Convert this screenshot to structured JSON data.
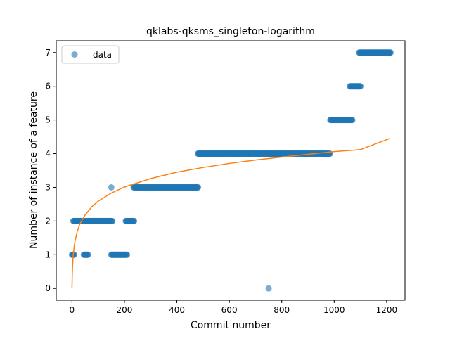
{
  "chart_data": {
    "type": "scatter",
    "title": "qklabs-qksms_singleton-logarithm",
    "xlabel": "Commit number",
    "ylabel": "Number of instance of a feature",
    "xlim": [
      -60,
      1270
    ],
    "ylim": [
      -0.35,
      7.35
    ],
    "x_ticks": [
      0,
      200,
      400,
      600,
      800,
      1000,
      1200
    ],
    "y_ticks": [
      0,
      1,
      2,
      3,
      4,
      5,
      6,
      7
    ],
    "grid": false,
    "legend_position": "upper-left",
    "series": [
      {
        "name": "data",
        "kind": "scatter",
        "color": "#1f77b4",
        "runs": [
          {
            "x0": 0,
            "x1": 8,
            "y": 1
          },
          {
            "x0": 5,
            "x1": 55,
            "y": 2
          },
          {
            "x0": 45,
            "x1": 62,
            "y": 1
          },
          {
            "x0": 60,
            "x1": 155,
            "y": 2
          },
          {
            "x0": 150,
            "x1": 210,
            "y": 1
          },
          {
            "x0": 205,
            "x1": 238,
            "y": 2
          },
          {
            "x0": 235,
            "x1": 482,
            "y": 3
          },
          {
            "x0": 480,
            "x1": 985,
            "y": 4
          },
          {
            "x0": 985,
            "x1": 1070,
            "y": 5
          },
          {
            "x0": 1060,
            "x1": 1100,
            "y": 6
          },
          {
            "x0": 1095,
            "x1": 1215,
            "y": 7
          }
        ],
        "points": [
          {
            "x": 150,
            "y": 3
          },
          {
            "x": 750,
            "y": 0
          }
        ]
      },
      {
        "name": "",
        "kind": "line",
        "color": "#ff7f0e",
        "model": "logarithmic",
        "x": [
          0,
          1,
          2,
          5,
          10,
          20,
          30,
          50,
          75,
          100,
          150,
          200,
          300,
          400,
          500,
          600,
          700,
          800,
          900,
          1000,
          1100,
          1212
        ],
        "y": [
          0.0,
          0.39,
          0.62,
          1.01,
          1.34,
          1.69,
          1.91,
          2.18,
          2.42,
          2.59,
          2.83,
          3.01,
          3.26,
          3.45,
          3.59,
          3.71,
          3.81,
          3.9,
          3.98,
          4.06,
          4.12,
          4.45
        ]
      }
    ]
  }
}
